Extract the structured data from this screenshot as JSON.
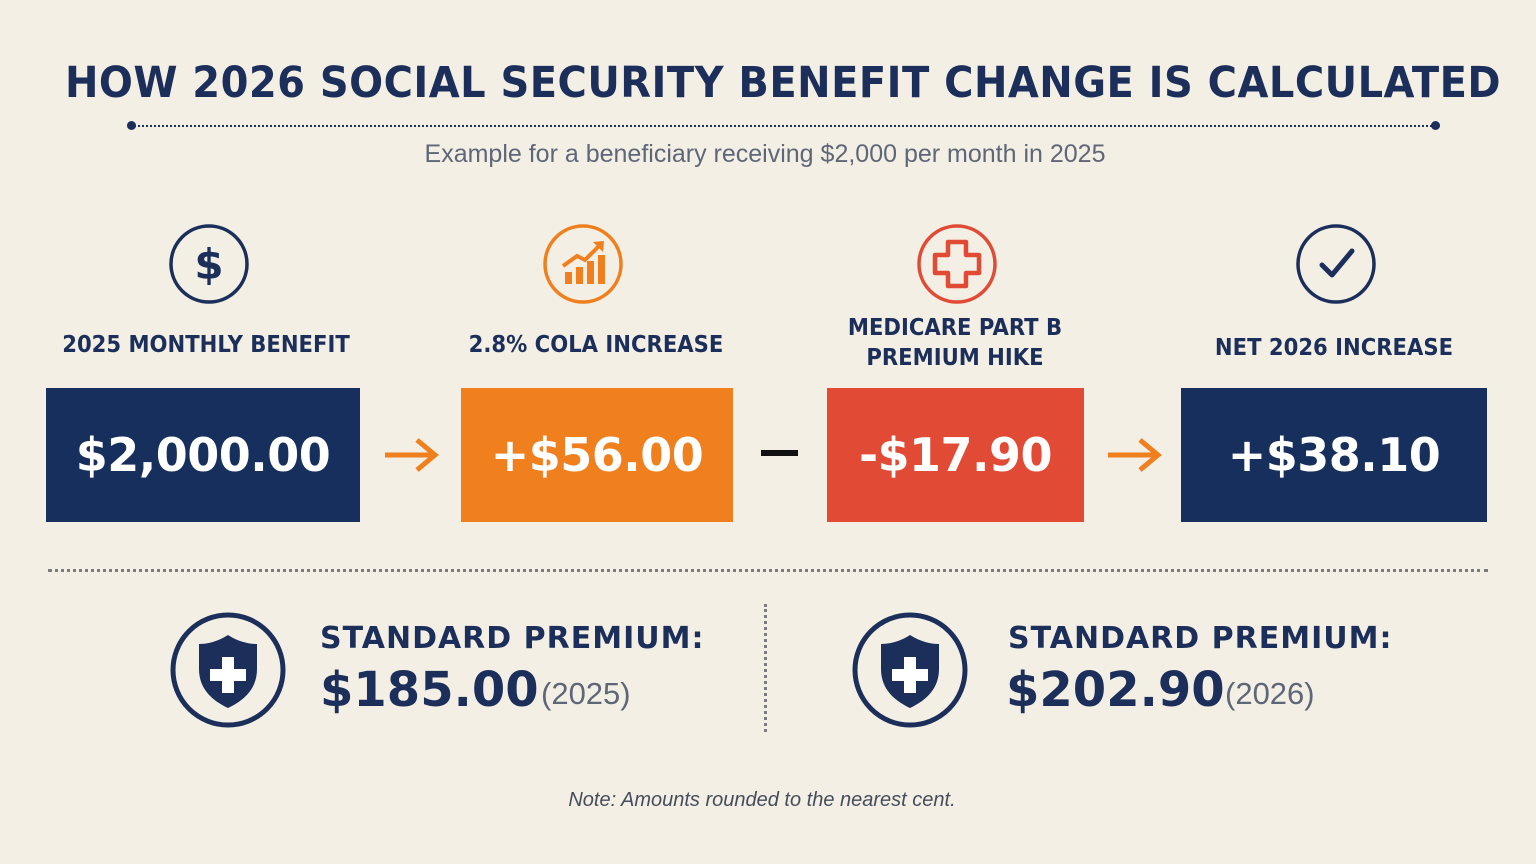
{
  "header": {
    "title": "HOW 2026 SOCIAL SECURITY BENEFIT CHANGE IS CALCULATED",
    "subtitle": "Example for a beneficiary receiving $2,000 per month in 2025"
  },
  "steps": [
    {
      "icon": "dollar-icon",
      "label": "2025 MONTHLY BENEFIT",
      "value": "$2,000.00",
      "color": "#162f5c"
    },
    {
      "icon": "rising-chart-icon",
      "label": "2.8% COLA INCREASE",
      "value": "+$56.00",
      "color": "#f07f1e"
    },
    {
      "icon": "medical-cross-icon",
      "label_line1": "MEDICARE PART B",
      "label_line2": "PREMIUM HIKE",
      "value": "-$17.90",
      "color": "#e14b36"
    },
    {
      "icon": "checkmark-icon",
      "label": "NET 2026 INCREASE",
      "value": "+$38.10",
      "color": "#162f5c"
    }
  ],
  "operators": [
    "arrow-right-icon",
    "minus-icon",
    "arrow-right-icon"
  ],
  "premiums": [
    {
      "icon": "shield-cross-icon",
      "label": "STANDARD PREMIUM:",
      "amount": "$185.00",
      "year": "(2025)"
    },
    {
      "icon": "shield-cross-icon",
      "label": "STANDARD PREMIUM:",
      "amount": "$202.90",
      "year": "(2026)"
    }
  ],
  "colors": {
    "navy": "#1b2f5a",
    "orange": "#f07f1e",
    "red": "#e14b36",
    "background": "#f3efe4"
  },
  "note": "Note: Amounts rounded to the nearest cent."
}
